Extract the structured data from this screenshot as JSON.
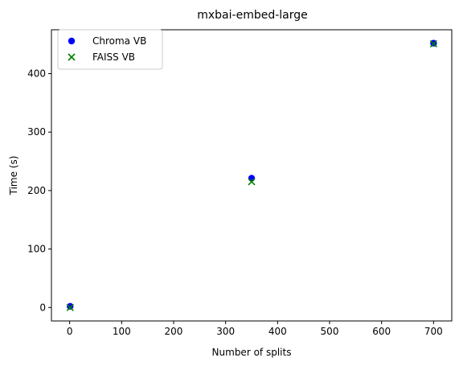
{
  "chart_data": {
    "type": "scatter",
    "title": "mxbai-embed-large",
    "xlabel": "Number of splits",
    "ylabel": "Time (s)",
    "xlim": [
      -35,
      735
    ],
    "ylim": [
      -23,
      475
    ],
    "xticks": [
      0,
      100,
      200,
      300,
      400,
      500,
      600,
      700
    ],
    "yticks": [
      0,
      100,
      200,
      300,
      400
    ],
    "grid": false,
    "legend": "upper-left",
    "series": [
      {
        "name": "Chroma VB",
        "marker": "circle",
        "color": "#0000ff",
        "x": [
          1,
          350,
          700
        ],
        "y": [
          2,
          221,
          452
        ]
      },
      {
        "name": "FAISS VB",
        "marker": "x",
        "color": "#008000",
        "x": [
          1,
          350,
          700
        ],
        "y": [
          0,
          215,
          451
        ]
      }
    ]
  }
}
